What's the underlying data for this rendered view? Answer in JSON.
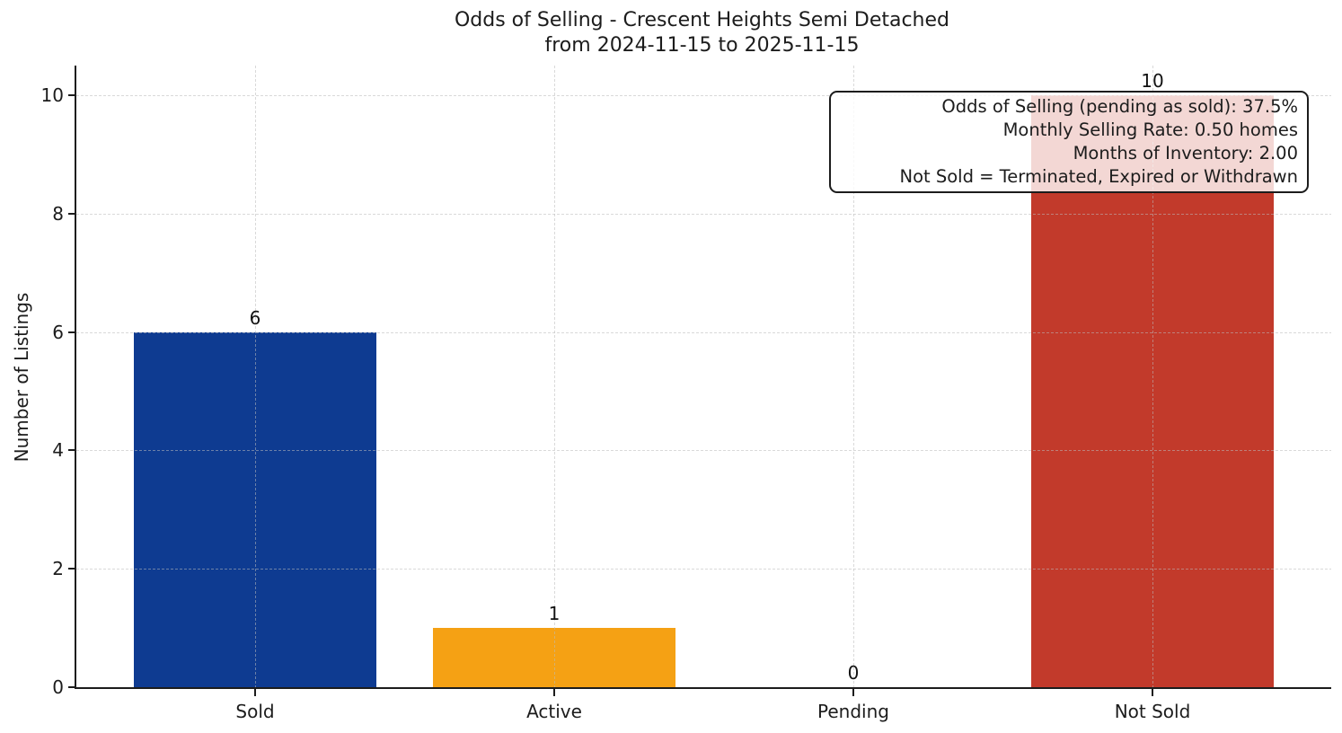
{
  "chart_data": {
    "type": "bar",
    "title": "Odds of Selling - Crescent Heights Semi Detached",
    "subtitle": "from 2024-11-15 to 2025-11-15",
    "categories": [
      "Sold",
      "Active",
      "Pending",
      "Not Sold"
    ],
    "values": [
      6,
      1,
      0,
      10
    ],
    "bar_colors": [
      "#0e3b91",
      "#f5a114",
      null,
      "#c23a2b"
    ],
    "xlabel": "",
    "ylabel": "Number of Listings",
    "yticks": [
      0,
      2,
      4,
      6,
      8,
      10
    ],
    "ylim": [
      0,
      10.5
    ],
    "grid": "dashed gridlines on both axes, drawn above bars",
    "legend": "none",
    "annotation_box": {
      "position": "top-right",
      "lines": [
        "Odds of Selling (pending as sold): 37.5%",
        "Monthly Selling Rate: 0.50 homes",
        "Months of Inventory: 2.00",
        "Not Sold = Terminated, Expired or Withdrawn"
      ]
    }
  },
  "colors": {
    "axis": "#1c1c1c",
    "text": "#1c1c1c",
    "grid": "#bababa",
    "annotation_border": "#1c1c1c",
    "annotation_background": "rgba(255,255,255,0.8)"
  }
}
